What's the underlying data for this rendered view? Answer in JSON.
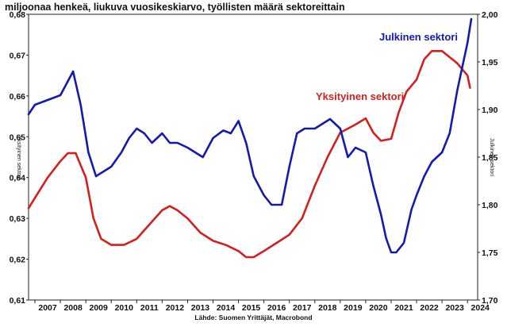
{
  "chart_data": {
    "type": "line",
    "title": "miljoonaa henkeä, liukuva vuosikeskiarvo, työllisten määrä sektoreittain",
    "source": "Lähde: Suomen Yrittäjät, Macrobond",
    "ylabel_left": "Yksityinen sektori",
    "ylabel_right": "Julkinen sektori",
    "left_axis": {
      "min": 0.61,
      "max": 0.68,
      "ticks": [
        "0,61",
        "0,62",
        "0,63",
        "0,64",
        "0,65",
        "0,66",
        "0,67",
        "0,68"
      ]
    },
    "right_axis": {
      "min": 1.7,
      "max": 2.0,
      "ticks": [
        "1,70",
        "1,75",
        "1,80",
        "1,85",
        "1,90",
        "1,95",
        "2,00"
      ]
    },
    "x_axis": {
      "min": 2006.75,
      "max": 2024.4,
      "ticks": [
        "2007",
        "2008",
        "2009",
        "2010",
        "2011",
        "2012",
        "2013",
        "2014",
        "2015",
        "2016",
        "2017",
        "2018",
        "2019",
        "2020",
        "2021",
        "2022",
        "2023",
        "2024"
      ]
    },
    "series": [
      {
        "name": "Yksityinen sektori",
        "axis": "left",
        "color": "#d41f1f",
        "x": [
          2006.75,
          2007.0,
          2007.5,
          2008.0,
          2008.3,
          2008.6,
          2009.0,
          2009.3,
          2009.6,
          2010.0,
          2010.5,
          2011.0,
          2011.5,
          2012.0,
          2012.3,
          2012.6,
          2013.0,
          2013.5,
          2014.0,
          2014.5,
          2015.0,
          2015.3,
          2015.6,
          2016.0,
          2016.5,
          2017.0,
          2017.5,
          2018.0,
          2018.5,
          2019.0,
          2019.3,
          2019.6,
          2020.0,
          2020.3,
          2020.6,
          2021.0,
          2021.3,
          2021.6,
          2022.0,
          2022.3,
          2022.6,
          2023.0,
          2023.3,
          2023.6,
          2024.0,
          2024.1
        ],
        "values": [
          0.6325,
          0.635,
          0.64,
          0.644,
          0.646,
          0.646,
          0.64,
          0.63,
          0.625,
          0.6235,
          0.6235,
          0.625,
          0.6285,
          0.632,
          0.633,
          0.632,
          0.63,
          0.6265,
          0.6245,
          0.6235,
          0.622,
          0.6205,
          0.6205,
          0.622,
          0.624,
          0.626,
          0.63,
          0.638,
          0.645,
          0.651,
          0.652,
          0.653,
          0.6545,
          0.651,
          0.649,
          0.6495,
          0.656,
          0.661,
          0.664,
          0.669,
          0.671,
          0.671,
          0.6695,
          0.668,
          0.665,
          0.662
        ]
      },
      {
        "name": "Julkinen sektori",
        "axis": "right",
        "color": "#1419b0",
        "x": [
          2006.75,
          2007.0,
          2007.5,
          2008.0,
          2008.3,
          2008.5,
          2008.8,
          2009.1,
          2009.4,
          2009.7,
          2010.0,
          2010.4,
          2010.7,
          2011.0,
          2011.3,
          2011.6,
          2012.0,
          2012.3,
          2012.6,
          2013.0,
          2013.3,
          2013.6,
          2014.0,
          2014.4,
          2014.7,
          2015.0,
          2015.3,
          2015.6,
          2016.0,
          2016.3,
          2016.7,
          2017.0,
          2017.3,
          2017.6,
          2018.0,
          2018.3,
          2018.6,
          2019.0,
          2019.3,
          2019.6,
          2020.0,
          2020.3,
          2020.6,
          2020.8,
          2021.0,
          2021.2,
          2021.5,
          2021.8,
          2022.0,
          2022.3,
          2022.6,
          2023.0,
          2023.3,
          2023.6,
          2024.0,
          2024.15
        ],
        "values": [
          1.895,
          1.905,
          1.91,
          1.915,
          1.93,
          1.94,
          1.905,
          1.855,
          1.83,
          1.835,
          1.84,
          1.855,
          1.87,
          1.88,
          1.875,
          1.865,
          1.875,
          1.865,
          1.865,
          1.86,
          1.855,
          1.85,
          1.87,
          1.878,
          1.875,
          1.888,
          1.865,
          1.83,
          1.81,
          1.8,
          1.8,
          1.84,
          1.875,
          1.88,
          1.88,
          1.885,
          1.89,
          1.88,
          1.85,
          1.86,
          1.855,
          1.82,
          1.79,
          1.765,
          1.75,
          1.75,
          1.76,
          1.795,
          1.81,
          1.83,
          1.845,
          1.855,
          1.875,
          1.92,
          1.97,
          1.995
        ]
      }
    ]
  }
}
